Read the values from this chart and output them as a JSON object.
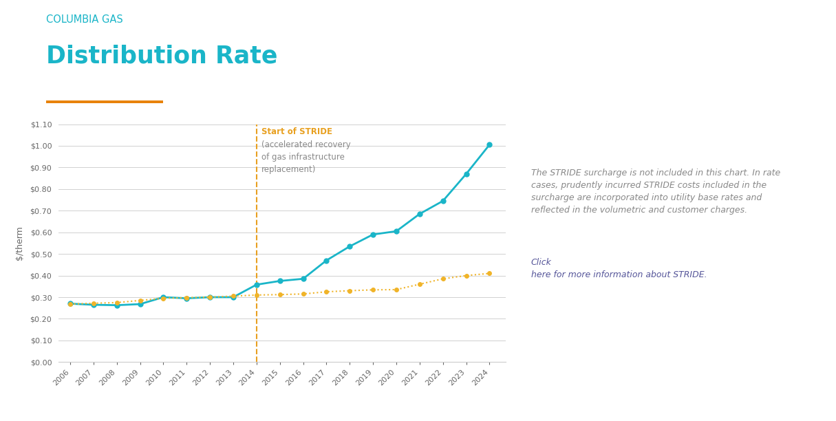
{
  "title_line1": "COLUMBIA GAS",
  "title_line2": "Distribution Rate",
  "ylabel": "$/therm",
  "columbia_gas_color": "#1ab5c8",
  "inflation_color": "#f0b429",
  "orange_line_color": "#e8a020",
  "background_color": "#ffffff",
  "decoration_line_color": "#e8820a",
  "grid_color": "#d0d0d0",
  "years": [
    2006,
    2007,
    2008,
    2009,
    2010,
    2011,
    2012,
    2013,
    2014,
    2015,
    2016,
    2017,
    2018,
    2019,
    2020,
    2021,
    2022,
    2023,
    2024
  ],
  "columbia_gas_values": [
    0.27,
    0.265,
    0.263,
    0.268,
    0.3,
    0.295,
    0.3,
    0.3,
    0.358,
    0.375,
    0.385,
    0.47,
    0.535,
    0.59,
    0.605,
    0.685,
    0.745,
    0.87,
    1.005
  ],
  "inflation_values": [
    0.268,
    0.272,
    0.275,
    0.285,
    0.295,
    0.298,
    0.3,
    0.305,
    0.31,
    0.312,
    0.315,
    0.325,
    0.33,
    0.334,
    0.335,
    0.36,
    0.385,
    0.4,
    0.41
  ],
  "stride_year": 2014,
  "stride_label_bold": "Start of STRIDE",
  "stride_label_rest": "(accelerated recovery\nof gas infrastructure\nreplacement)",
  "ylim_min": 0.0,
  "ylim_max": 1.1,
  "yticks": [
    0.0,
    0.1,
    0.2,
    0.3,
    0.4,
    0.5,
    0.6,
    0.7,
    0.8,
    0.9,
    1.0,
    1.1
  ],
  "annotation_main": "The STRIDE surcharge is not included in this chart. In rate\ncases, prudently incurred STRIDE costs included in the\nsurcharge are incorporated into utility base rates and\nreflected in the volumetric and customer charges. ",
  "annotation_link": "Click\nhere for more information about STRIDE.",
  "text_color": "#888888",
  "link_color": "#555599"
}
